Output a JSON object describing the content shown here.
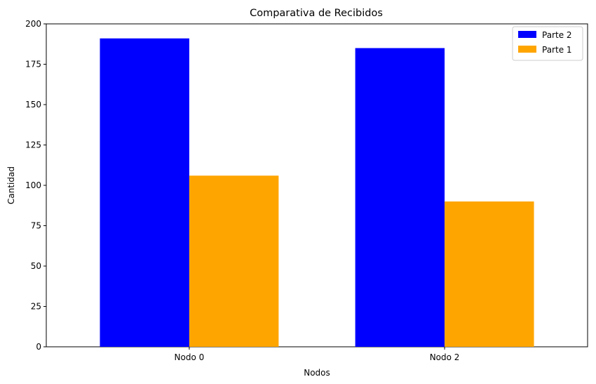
{
  "chart_data": {
    "type": "bar",
    "title": "Comparativa de Recibidos",
    "xlabel": "Nodos",
    "ylabel": "Cantidad",
    "categories": [
      "Nodo 0",
      "Nodo 2"
    ],
    "series": [
      {
        "name": "Parte 2",
        "color": "#0000ff",
        "values": [
          191,
          185
        ]
      },
      {
        "name": "Parte 1",
        "color": "#ffa500",
        "values": [
          106,
          90
        ]
      }
    ],
    "ylim": [
      0,
      200
    ],
    "yticks": [
      0,
      25,
      50,
      75,
      100,
      125,
      150,
      175,
      200
    ],
    "grid": false,
    "legend_position": "top-right"
  }
}
